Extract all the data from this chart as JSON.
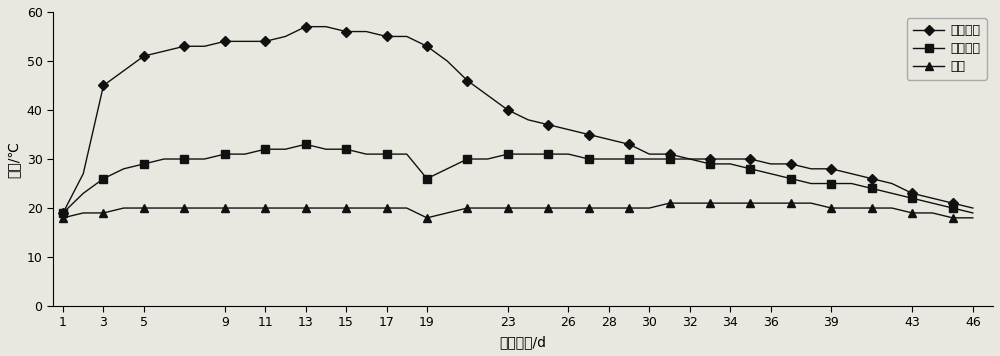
{
  "x_ticks": [
    1,
    3,
    5,
    9,
    11,
    13,
    15,
    17,
    19,
    23,
    26,
    28,
    30,
    32,
    34,
    36,
    39,
    43,
    46
  ],
  "xlabel": "堆肥天数/d",
  "ylabel": "温度/℃",
  "ylim": [
    0,
    60
  ],
  "yticks": [
    0,
    10,
    20,
    30,
    40,
    50,
    60
  ],
  "series": [
    {
      "label": "菌剂处理",
      "marker": "D",
      "color": "#111111",
      "x": [
        1,
        2,
        3,
        4,
        5,
        6,
        7,
        8,
        9,
        10,
        11,
        12,
        13,
        14,
        15,
        16,
        17,
        18,
        19,
        20,
        21,
        22,
        23,
        24,
        25,
        26,
        27,
        28,
        29,
        30,
        31,
        32,
        33,
        34,
        35,
        36,
        37,
        38,
        39,
        40,
        41,
        42,
        43,
        44,
        45,
        46
      ],
      "y": [
        19,
        27,
        45,
        48,
        51,
        52,
        53,
        53,
        54,
        54,
        54,
        55,
        57,
        57,
        56,
        56,
        55,
        55,
        53,
        50,
        46,
        43,
        40,
        38,
        37,
        36,
        35,
        34,
        33,
        31,
        31,
        30,
        30,
        30,
        30,
        29,
        29,
        28,
        28,
        27,
        26,
        25,
        23,
        22,
        21,
        20
      ]
    },
    {
      "label": "自然堆肥",
      "marker": "s",
      "color": "#111111",
      "x": [
        1,
        2,
        3,
        4,
        5,
        6,
        7,
        8,
        9,
        10,
        11,
        12,
        13,
        14,
        15,
        16,
        17,
        18,
        19,
        20,
        21,
        22,
        23,
        24,
        25,
        26,
        27,
        28,
        29,
        30,
        31,
        32,
        33,
        34,
        35,
        36,
        37,
        38,
        39,
        40,
        41,
        42,
        43,
        44,
        45,
        46
      ],
      "y": [
        19,
        23,
        26,
        28,
        29,
        30,
        30,
        30,
        31,
        31,
        32,
        32,
        33,
        32,
        32,
        31,
        31,
        31,
        26,
        28,
        30,
        30,
        31,
        31,
        31,
        31,
        30,
        30,
        30,
        30,
        30,
        30,
        29,
        29,
        28,
        27,
        26,
        25,
        25,
        25,
        24,
        23,
        22,
        21,
        20,
        19
      ]
    },
    {
      "label": "室温",
      "marker": "^",
      "color": "#111111",
      "x": [
        1,
        2,
        3,
        4,
        5,
        6,
        7,
        8,
        9,
        10,
        11,
        12,
        13,
        14,
        15,
        16,
        17,
        18,
        19,
        20,
        21,
        22,
        23,
        24,
        25,
        26,
        27,
        28,
        29,
        30,
        31,
        32,
        33,
        34,
        35,
        36,
        37,
        38,
        39,
        40,
        41,
        42,
        43,
        44,
        45,
        46
      ],
      "y": [
        18,
        19,
        19,
        20,
        20,
        20,
        20,
        20,
        20,
        20,
        20,
        20,
        20,
        20,
        20,
        20,
        20,
        20,
        18,
        19,
        20,
        20,
        20,
        20,
        20,
        20,
        20,
        20,
        20,
        20,
        21,
        21,
        21,
        21,
        21,
        21,
        21,
        21,
        20,
        20,
        20,
        20,
        19,
        19,
        18,
        18
      ]
    }
  ],
  "legend_loc": "upper right",
  "background_color": "#e8e8e0",
  "line_width": 1.0,
  "marker_size": 5,
  "marker_every": 2,
  "fig_width": 10.0,
  "fig_height": 3.56,
  "dpi": 100
}
